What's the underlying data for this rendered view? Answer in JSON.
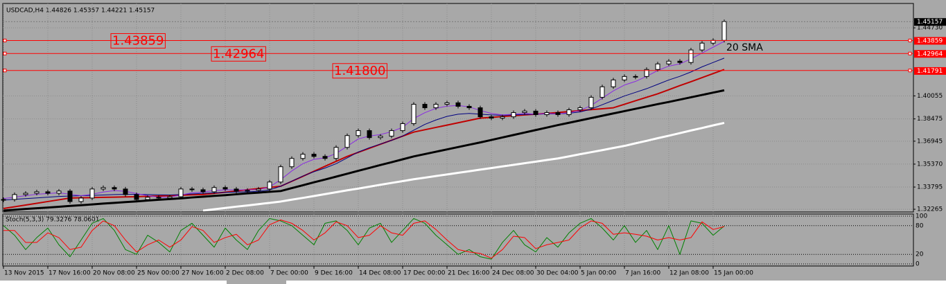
{
  "chart_data": {
    "type": "candlestick",
    "title": "USDCAD,H4  1.44826 1.45357 1.44221 1.45157",
    "categories": [
      "13 Nov 2015",
      null,
      null,
      null,
      "17 Nov 16:00",
      null,
      null,
      null,
      "20 Nov 08:00",
      null,
      null,
      null,
      "25 Nov 00:00",
      null,
      null,
      null,
      "27 Nov 16:00",
      null,
      null,
      null,
      "2 Dec 08:00",
      null,
      null,
      null,
      "7 Dec 00:00",
      null,
      null,
      null,
      "9 Dec 16:00",
      null,
      null,
      null,
      "14 Dec 08:00",
      null,
      null,
      null,
      "17 Dec 00:00",
      null,
      null,
      null,
      "21 Dec 16:00",
      null,
      null,
      null,
      "24 Dec 08:00",
      null,
      null,
      null,
      "30 Dec 04:00",
      null,
      null,
      null,
      "5 Jan 00:00",
      null,
      null,
      null,
      "7 Jan 16:00",
      null,
      null,
      null,
      "12 Jan 08:00",
      null,
      null,
      null,
      "15 Jan 00:00",
      null
    ],
    "close": [
      1.3294,
      1.3328,
      1.3337,
      1.3347,
      1.3337,
      1.3352,
      1.328,
      1.3304,
      1.3366,
      1.3376,
      1.3366,
      1.3328,
      1.3294,
      1.3309,
      1.3304,
      1.3313,
      1.3366,
      1.3361,
      1.3347,
      1.3376,
      1.3366,
      1.3352,
      1.3357,
      1.3366,
      1.3414,
      1.3519,
      1.3576,
      1.3605,
      1.359,
      1.3576,
      1.3652,
      1.3733,
      1.3767,
      1.3719,
      1.3729,
      1.3767,
      1.3815,
      1.3948,
      1.3924,
      1.3948,
      1.3958,
      1.3934,
      1.3924,
      1.3862,
      1.3853,
      1.3862,
      1.3891,
      1.3901,
      1.3877,
      1.3891,
      1.3877,
      1.391,
      1.3924,
      1.3996,
      1.4068,
      1.4115,
      1.4139,
      1.4139,
      1.4187,
      1.4225,
      1.4244,
      1.4235,
      1.4321,
      1.4368,
      1.4387,
      1.45157
    ],
    "ylim": [
      1.32084,
      1.46403
    ],
    "yticks": [
      {
        "value": 1.3227,
        "label": "1.32265"
      },
      {
        "value": 1.33795,
        "label": "1.33795"
      },
      {
        "value": 1.3537,
        "label": "1.35370"
      },
      {
        "value": 1.36945,
        "label": "1.36945"
      },
      {
        "value": 1.38475,
        "label": "1.38475"
      },
      {
        "value": 1.40055,
        "label": "1.40055"
      },
      {
        "value": 1.4473,
        "label": "1.44730"
      }
    ],
    "grid": true,
    "current_price": 1.45157,
    "levels": [
      1.43859,
      1.42964,
      {
        "value": 1.418,
        "label": "1.41800"
      }
    ],
    "level_markers": [
      1.43859,
      1.42964,
      1.41791
    ],
    "annotation": "20 SMA",
    "overlays": [
      {
        "color": "#ffffff",
        "width": 3,
        "values": [
          null,
          null,
          null,
          null,
          null,
          null,
          null,
          null,
          null,
          null,
          null,
          null,
          null,
          null,
          null,
          null,
          null,
          null,
          1.3218,
          1.3227,
          1.3236,
          1.3245,
          1.3253,
          1.3262,
          1.3271,
          1.328,
          1.3293,
          1.3305,
          1.3318,
          1.3331,
          1.3344,
          1.3357,
          1.3369,
          1.3382,
          1.3395,
          1.3408,
          1.342,
          1.3433,
          1.3444,
          1.3455,
          1.3466,
          1.3477,
          1.3488,
          1.3499,
          1.351,
          1.3521,
          1.3532,
          1.3543,
          1.3554,
          1.3565,
          1.3576,
          1.359,
          1.3605,
          1.3619,
          1.3633,
          1.3648,
          1.3662,
          1.368,
          1.3697,
          1.3715,
          1.3732,
          1.375,
          1.3768,
          1.3785,
          1.3803,
          1.382
        ]
      },
      {
        "color": "#000000",
        "width": 3,
        "values": [
          1.3218,
          1.3223,
          1.3229,
          1.3234,
          1.3239,
          1.3244,
          1.325,
          1.3255,
          1.326,
          1.3266,
          1.3271,
          1.3276,
          1.3281,
          1.3287,
          1.3292,
          1.3297,
          1.3302,
          1.3308,
          1.3313,
          1.3319,
          1.3324,
          1.333,
          1.3336,
          1.3341,
          1.3347,
          1.3352,
          1.3372,
          1.3392,
          1.3412,
          1.3431,
          1.3451,
          1.3471,
          1.3491,
          1.3511,
          1.3531,
          1.355,
          1.357,
          1.359,
          1.3606,
          1.3622,
          1.3638,
          1.3654,
          1.367,
          1.3686,
          1.3703,
          1.372,
          1.3737,
          1.3754,
          1.3771,
          1.3788,
          1.3805,
          1.3821,
          1.3837,
          1.3853,
          1.3869,
          1.3885,
          1.3901,
          1.3917,
          1.3933,
          1.3949,
          1.3964,
          1.398,
          1.3996,
          1.4012,
          1.4028,
          1.4044
        ]
      },
      {
        "color": "#c00000",
        "width": 2,
        "values": [
          1.3232,
          1.3244,
          1.3256,
          1.3268,
          1.328,
          1.3292,
          1.3304,
          1.3306,
          1.3307,
          1.3309,
          1.331,
          1.3312,
          1.3313,
          1.3316,
          1.3318,
          1.3321,
          1.3323,
          1.3326,
          1.3328,
          1.3336,
          1.3344,
          1.3352,
          1.3361,
          1.3369,
          1.3377,
          1.3385,
          1.3419,
          1.3453,
          1.3488,
          1.3522,
          1.3556,
          1.359,
          1.3618,
          1.3646,
          1.3674,
          1.3701,
          1.3729,
          1.3757,
          1.3773,
          1.3789,
          1.3805,
          1.3821,
          1.3837,
          1.3853,
          1.3858,
          1.3864,
          1.3869,
          1.3875,
          1.388,
          1.3886,
          1.3891,
          1.3898,
          1.3904,
          1.3911,
          1.3917,
          1.3924,
          1.3948,
          1.3972,
          1.3996,
          1.402,
          1.4048,
          1.4076,
          1.4103,
          1.4131,
          1.4159,
          1.4187
        ]
      },
      {
        "color": "#000080",
        "width": 1,
        "values": [
          1.329,
          1.3295,
          1.33,
          1.3305,
          1.331,
          1.3315,
          1.3318,
          1.332,
          1.3322,
          1.3325,
          1.3328,
          1.333,
          1.333,
          1.3328,
          1.3326,
          1.3325,
          1.3328,
          1.3332,
          1.3336,
          1.334,
          1.3343,
          1.3345,
          1.3347,
          1.335,
          1.336,
          1.3385,
          1.342,
          1.3455,
          1.3485,
          1.351,
          1.354,
          1.358,
          1.362,
          1.365,
          1.3675,
          1.37,
          1.373,
          1.377,
          1.381,
          1.384,
          1.3865,
          1.388,
          1.3885,
          1.388,
          1.3875,
          1.3872,
          1.3875,
          1.3878,
          1.388,
          1.3882,
          1.3882,
          1.3886,
          1.3895,
          1.3915,
          1.3945,
          1.3975,
          1.4005,
          1.403,
          1.4055,
          1.4085,
          1.4115,
          1.414,
          1.417,
          1.4205,
          1.4235,
          1.4265
        ]
      },
      {
        "color": "#8a2be2",
        "width": 1,
        "values": [
          1.33,
          1.331,
          1.332,
          1.333,
          1.3335,
          1.334,
          1.333,
          1.332,
          1.333,
          1.3345,
          1.3355,
          1.335,
          1.3335,
          1.332,
          1.331,
          1.331,
          1.3325,
          1.334,
          1.3345,
          1.3355,
          1.336,
          1.336,
          1.336,
          1.3362,
          1.338,
          1.343,
          1.349,
          1.354,
          1.357,
          1.358,
          1.361,
          1.366,
          1.371,
          1.373,
          1.374,
          1.376,
          1.379,
          1.385,
          1.389,
          1.392,
          1.3935,
          1.394,
          1.393,
          1.3905,
          1.3885,
          1.3875,
          1.388,
          1.3885,
          1.388,
          1.3885,
          1.3882,
          1.389,
          1.3905,
          1.394,
          1.399,
          1.404,
          1.408,
          1.4105,
          1.414,
          1.418,
          1.421,
          1.4225,
          1.426,
          1.43,
          1.434,
          1.438
        ]
      }
    ],
    "indicator": {
      "type": "line",
      "title": "Stoch(5,3,3) 79.3276 78.0601",
      "ylim": [
        0,
        100
      ],
      "yticks": [
        0,
        20,
        80,
        100
      ],
      "series": [
        {
          "color": "#008000",
          "values": [
            80,
            60,
            30,
            55,
            75,
            40,
            15,
            50,
            85,
            95,
            70,
            30,
            20,
            60,
            45,
            25,
            70,
            85,
            60,
            35,
            75,
            50,
            30,
            70,
            95,
            90,
            80,
            60,
            40,
            85,
            90,
            70,
            40,
            75,
            85,
            45,
            70,
            95,
            85,
            60,
            40,
            20,
            30,
            15,
            10,
            45,
            70,
            40,
            25,
            55,
            35,
            65,
            85,
            95,
            75,
            50,
            80,
            45,
            70,
            30,
            80,
            20,
            90,
            85,
            60,
            79.3276
          ]
        },
        {
          "color": "#ff0000",
          "values": [
            70,
            70,
            45,
            45,
            65,
            55,
            30,
            35,
            70,
            90,
            80,
            50,
            25,
            40,
            50,
            35,
            50,
            78,
            70,
            45,
            55,
            62,
            40,
            50,
            82,
            92,
            85,
            70,
            50,
            65,
            88,
            80,
            55,
            60,
            80,
            65,
            60,
            85,
            90,
            72,
            50,
            30,
            25,
            22,
            12,
            30,
            58,
            55,
            32,
            40,
            45,
            50,
            75,
            90,
            85,
            62,
            65,
            62,
            58,
            50,
            55,
            50,
            55,
            88,
            72,
            78.0601
          ]
        }
      ]
    }
  }
}
